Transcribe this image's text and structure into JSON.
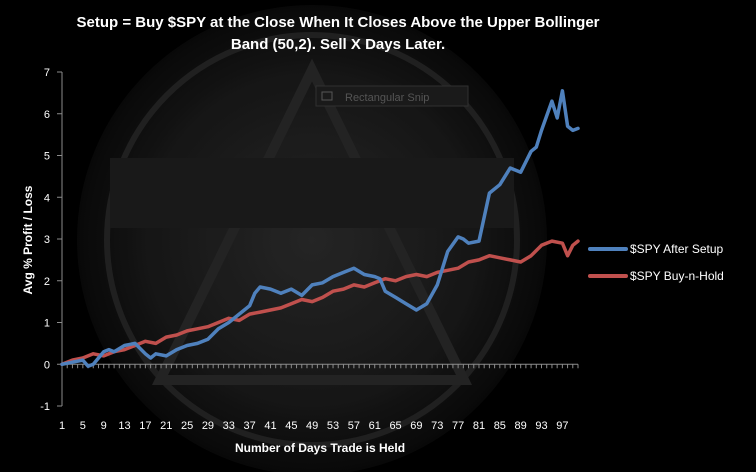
{
  "chart_data": {
    "type": "line",
    "title_line1": "Setup = Buy $SPY at the Close When It Closes Above the Upper Bollinger",
    "title_line2": "Band (50,2). Sell X Days Later.",
    "xlabel": "Number of Days Trade is Held",
    "ylabel": "Avg % Profit / Loss",
    "ylim": [
      -1,
      7
    ],
    "y_ticks": [
      -1,
      0,
      1,
      2,
      3,
      4,
      5,
      6,
      7
    ],
    "xlim": [
      1,
      100
    ],
    "x_ticks": [
      1,
      5,
      9,
      13,
      17,
      21,
      25,
      29,
      33,
      37,
      41,
      45,
      49,
      53,
      57,
      61,
      65,
      69,
      73,
      77,
      81,
      85,
      89,
      93,
      97
    ],
    "grid": false,
    "legend_position": "right",
    "watermark_text": "Rectangular Snip",
    "series": [
      {
        "name": "$SPY After Setup",
        "color": "#4F81BD",
        "x": [
          1,
          3,
          5,
          6,
          7,
          9,
          10,
          11,
          13,
          15,
          17,
          18,
          19,
          21,
          23,
          25,
          27,
          29,
          31,
          33,
          35,
          37,
          38,
          39,
          41,
          43,
          45,
          47,
          49,
          51,
          53,
          55,
          57,
          59,
          61,
          62,
          63,
          65,
          67,
          69,
          71,
          73,
          75,
          77,
          78,
          79,
          81,
          83,
          85,
          87,
          89,
          91,
          92,
          93,
          95,
          96,
          97,
          98,
          99,
          100
        ],
        "y": [
          0.0,
          0.05,
          0.1,
          -0.05,
          0.0,
          0.3,
          0.35,
          0.3,
          0.45,
          0.5,
          0.25,
          0.15,
          0.25,
          0.2,
          0.35,
          0.45,
          0.5,
          0.6,
          0.85,
          1.0,
          1.2,
          1.4,
          1.7,
          1.85,
          1.8,
          1.7,
          1.8,
          1.65,
          1.9,
          1.95,
          2.1,
          2.2,
          2.3,
          2.15,
          2.1,
          2.05,
          1.75,
          1.6,
          1.45,
          1.3,
          1.45,
          1.9,
          2.7,
          3.05,
          3.0,
          2.9,
          2.95,
          4.1,
          4.3,
          4.7,
          4.6,
          5.1,
          5.2,
          5.6,
          6.3,
          5.9,
          6.55,
          5.7,
          5.6,
          5.65
        ]
      },
      {
        "name": "$SPY Buy-n-Hold",
        "color": "#C0504D",
        "x": [
          1,
          3,
          5,
          7,
          9,
          11,
          13,
          15,
          17,
          19,
          21,
          23,
          25,
          27,
          29,
          31,
          33,
          35,
          37,
          39,
          41,
          43,
          45,
          47,
          49,
          51,
          53,
          55,
          57,
          59,
          61,
          63,
          65,
          67,
          69,
          71,
          73,
          75,
          77,
          79,
          81,
          83,
          85,
          87,
          89,
          91,
          93,
          95,
          97,
          98,
          99,
          100
        ],
        "y": [
          0.0,
          0.1,
          0.15,
          0.25,
          0.2,
          0.3,
          0.35,
          0.45,
          0.55,
          0.5,
          0.65,
          0.7,
          0.8,
          0.85,
          0.9,
          1.0,
          1.1,
          1.05,
          1.2,
          1.25,
          1.3,
          1.35,
          1.45,
          1.55,
          1.5,
          1.6,
          1.75,
          1.8,
          1.9,
          1.85,
          1.95,
          2.05,
          2.0,
          2.1,
          2.15,
          2.1,
          2.2,
          2.25,
          2.3,
          2.45,
          2.5,
          2.6,
          2.55,
          2.5,
          2.45,
          2.6,
          2.85,
          2.95,
          2.9,
          2.6,
          2.85,
          2.95
        ]
      }
    ]
  }
}
